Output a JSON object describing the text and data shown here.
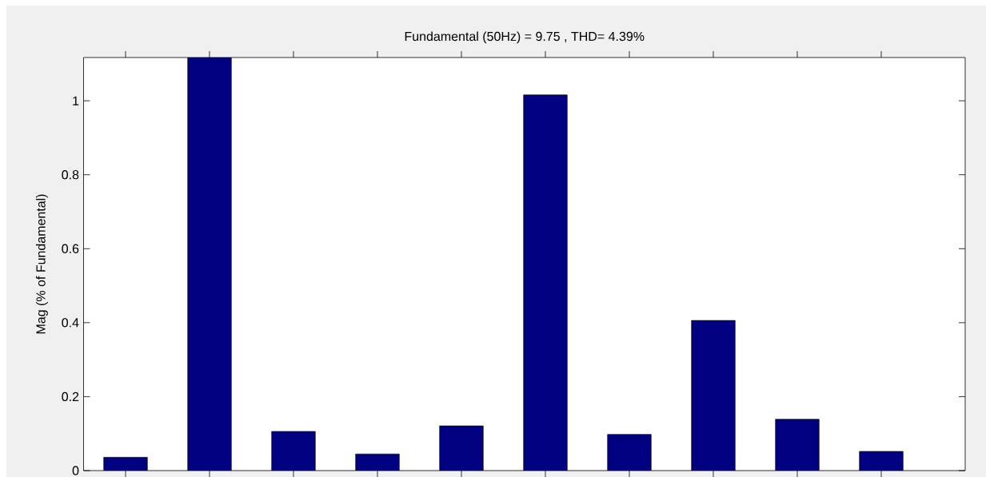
{
  "chart_data": {
    "type": "bar",
    "title": "Fundamental (50Hz) = 9.75 , THD= 4.39%",
    "ylabel": "Mag (% of Fundamental)",
    "categories": [
      null,
      null,
      null,
      null,
      null,
      null,
      null,
      null,
      null,
      null
    ],
    "values": [
      0.036,
      1.117,
      0.106,
      0.045,
      0.121,
      1.016,
      0.098,
      0.406,
      0.139,
      0.052
    ],
    "color": "#000080",
    "ylim": [
      0,
      1.117
    ],
    "yticks": [
      0,
      0.2,
      0.4,
      0.6,
      0.8,
      1
    ],
    "tick_labels": "y",
    "grid": false
  }
}
